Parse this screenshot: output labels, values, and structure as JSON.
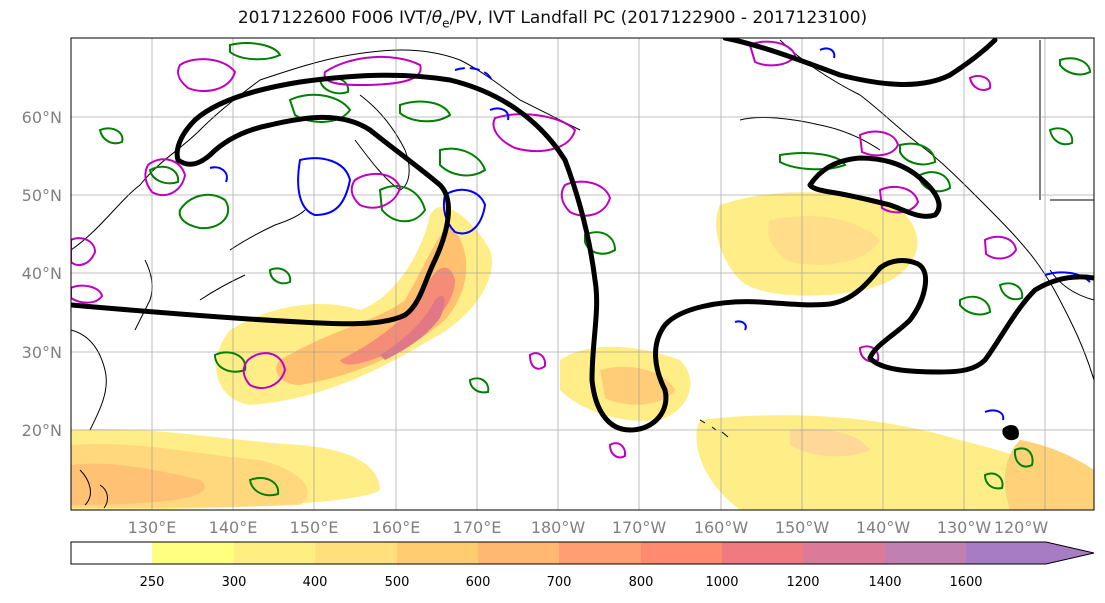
{
  "title": {
    "prefix": "2017122600 F006 IVT/",
    "theta": "θ",
    "theta_sub": "e",
    "suffix": "/PV, IVT Landfall PC (2017122900 - 2017123100)"
  },
  "map": {
    "lat_labels": [
      "60°N",
      "50°N",
      "40°N",
      "30°N",
      "20°N"
    ],
    "lon_labels": [
      "130°E",
      "140°E",
      "150°E",
      "160°E",
      "170°E",
      "180°W",
      "170°W",
      "160°W",
      "150°W",
      "140°W",
      "130°W",
      "120°W"
    ],
    "label_color": "#808080",
    "grid_color": "#999999",
    "contour_colors": {
      "landfall_pc": "#000000",
      "theta_e": "#008000",
      "pv_positive": "#c000c0",
      "pv_negative": "#0000ff"
    }
  },
  "colorbar": {
    "ticks": [
      "250",
      "300",
      "400",
      "500",
      "600",
      "700",
      "800",
      "1000",
      "1200",
      "1400",
      "1600"
    ],
    "colors": [
      "#ffff80",
      "#ffee80",
      "#ffe07a",
      "#ffcc70",
      "#ffb870",
      "#ff9e70",
      "#ff8a70",
      "#f07a80",
      "#dc7a9a",
      "#c080b0",
      "#a87cc4"
    ]
  }
}
